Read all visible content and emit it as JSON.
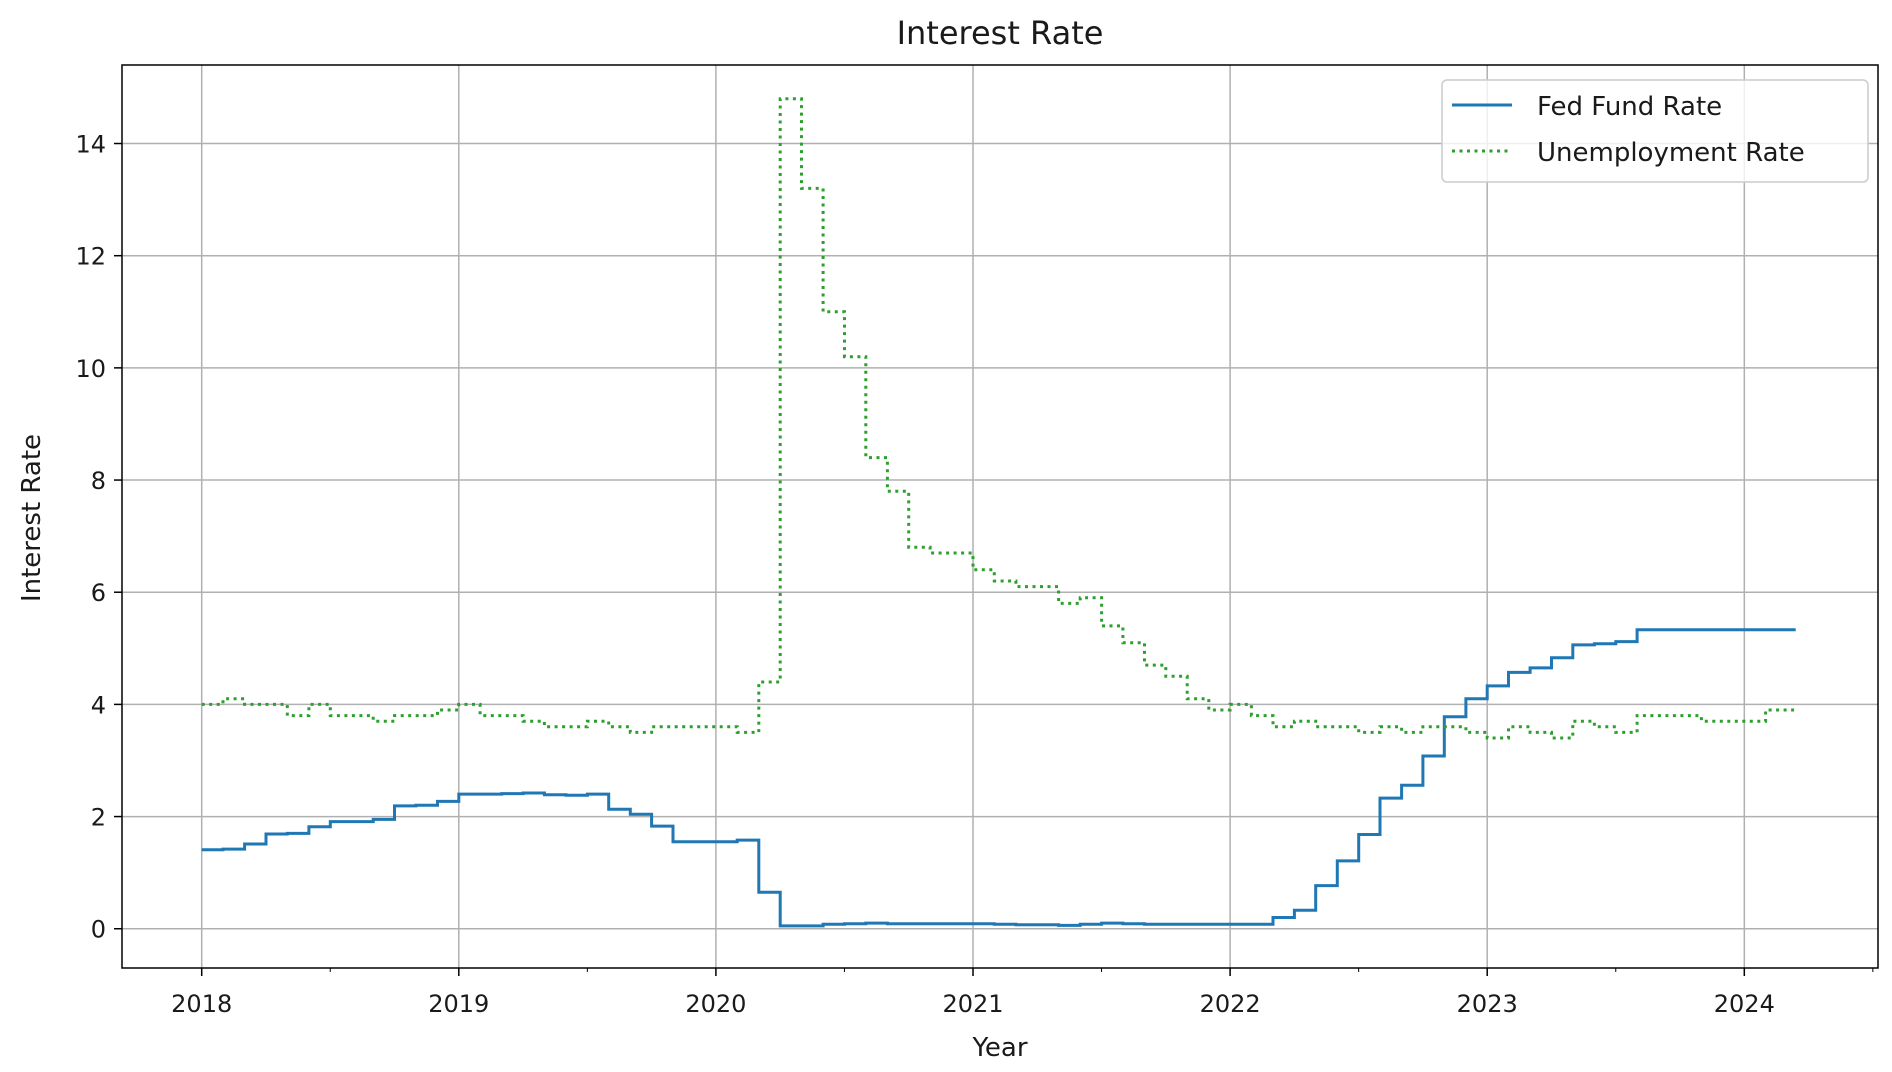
{
  "chart_data": {
    "type": "line",
    "title": "Interest Rate",
    "xlabel": "Year",
    "ylabel": "Interest Rate",
    "xlim": [
      2017.69,
      2024.52
    ],
    "ylim": [
      -0.7,
      15.4
    ],
    "x_ticks": [
      2018,
      2019,
      2020,
      2021,
      2022,
      2023,
      2024
    ],
    "x_tick_labels": [
      "2018",
      "2019",
      "2020",
      "2021",
      "2022",
      "2023",
      "2024"
    ],
    "y_ticks": [
      0,
      2,
      4,
      6,
      8,
      10,
      12,
      14
    ],
    "y_tick_labels": [
      "0",
      "2",
      "4",
      "6",
      "8",
      "10",
      "12",
      "14"
    ],
    "grid": true,
    "legend": "top-right",
    "series": [
      {
        "name": "Fed Fund Rate",
        "color": "#1f77b4",
        "style": "solid",
        "step": true,
        "x": [
          2018.0,
          2018.083,
          2018.167,
          2018.25,
          2018.333,
          2018.417,
          2018.5,
          2018.583,
          2018.667,
          2018.75,
          2018.833,
          2018.917,
          2019.0,
          2019.083,
          2019.167,
          2019.25,
          2019.333,
          2019.417,
          2019.5,
          2019.583,
          2019.667,
          2019.75,
          2019.833,
          2019.917,
          2020.0,
          2020.083,
          2020.167,
          2020.25,
          2020.333,
          2020.417,
          2020.5,
          2020.583,
          2020.667,
          2020.75,
          2020.833,
          2020.917,
          2021.0,
          2021.083,
          2021.167,
          2021.25,
          2021.333,
          2021.417,
          2021.5,
          2021.583,
          2021.667,
          2021.75,
          2021.833,
          2021.917,
          2022.0,
          2022.083,
          2022.167,
          2022.25,
          2022.333,
          2022.417,
          2022.5,
          2022.583,
          2022.667,
          2022.75,
          2022.833,
          2022.917,
          2023.0,
          2023.083,
          2023.167,
          2023.25,
          2023.333,
          2023.417,
          2023.5,
          2023.583,
          2023.667,
          2023.75,
          2023.833,
          2023.917,
          2024.0,
          2024.083,
          2024.167,
          2024.2
        ],
        "values": [
          1.41,
          1.42,
          1.51,
          1.69,
          1.7,
          1.82,
          1.91,
          1.91,
          1.95,
          2.19,
          2.2,
          2.27,
          2.4,
          2.4,
          2.41,
          2.42,
          2.39,
          2.38,
          2.4,
          2.13,
          2.04,
          1.83,
          1.55,
          1.55,
          1.55,
          1.58,
          0.65,
          0.05,
          0.05,
          0.08,
          0.09,
          0.1,
          0.09,
          0.09,
          0.09,
          0.09,
          0.09,
          0.08,
          0.07,
          0.07,
          0.06,
          0.08,
          0.1,
          0.09,
          0.08,
          0.08,
          0.08,
          0.08,
          0.08,
          0.08,
          0.2,
          0.33,
          0.77,
          1.21,
          1.68,
          2.33,
          2.56,
          3.08,
          3.78,
          4.1,
          4.33,
          4.57,
          4.65,
          4.83,
          5.06,
          5.08,
          5.12,
          5.33,
          5.33,
          5.33,
          5.33,
          5.33,
          5.33,
          5.33,
          5.33,
          5.33
        ]
      },
      {
        "name": "Unemployment Rate",
        "color": "#2ca02c",
        "style": "dotted",
        "step": true,
        "x": [
          2018.0,
          2018.083,
          2018.167,
          2018.25,
          2018.333,
          2018.417,
          2018.5,
          2018.583,
          2018.667,
          2018.75,
          2018.833,
          2018.917,
          2019.0,
          2019.083,
          2019.167,
          2019.25,
          2019.333,
          2019.417,
          2019.5,
          2019.583,
          2019.667,
          2019.75,
          2019.833,
          2019.917,
          2020.0,
          2020.083,
          2020.167,
          2020.25,
          2020.333,
          2020.417,
          2020.5,
          2020.583,
          2020.667,
          2020.75,
          2020.833,
          2020.917,
          2021.0,
          2021.083,
          2021.167,
          2021.25,
          2021.333,
          2021.417,
          2021.5,
          2021.583,
          2021.667,
          2021.75,
          2021.833,
          2021.917,
          2022.0,
          2022.083,
          2022.167,
          2022.25,
          2022.333,
          2022.417,
          2022.5,
          2022.583,
          2022.667,
          2022.75,
          2022.833,
          2022.917,
          2023.0,
          2023.083,
          2023.167,
          2023.25,
          2023.333,
          2023.417,
          2023.5,
          2023.583,
          2023.667,
          2023.75,
          2023.833,
          2023.917,
          2024.0,
          2024.083,
          2024.167,
          2024.2
        ],
        "values": [
          4.0,
          4.1,
          4.0,
          4.0,
          3.8,
          4.0,
          3.8,
          3.8,
          3.7,
          3.8,
          3.8,
          3.9,
          4.0,
          3.8,
          3.8,
          3.7,
          3.6,
          3.6,
          3.7,
          3.6,
          3.5,
          3.6,
          3.6,
          3.6,
          3.6,
          3.5,
          4.4,
          14.8,
          13.2,
          11.0,
          10.2,
          8.4,
          7.8,
          6.8,
          6.7,
          6.7,
          6.4,
          6.2,
          6.1,
          6.1,
          5.8,
          5.9,
          5.4,
          5.1,
          4.7,
          4.5,
          4.1,
          3.9,
          4.0,
          3.8,
          3.6,
          3.7,
          3.6,
          3.6,
          3.5,
          3.6,
          3.5,
          3.6,
          3.6,
          3.5,
          3.4,
          3.6,
          3.5,
          3.4,
          3.7,
          3.6,
          3.5,
          3.8,
          3.8,
          3.8,
          3.7,
          3.7,
          3.7,
          3.9,
          3.9,
          3.9
        ]
      }
    ]
  }
}
